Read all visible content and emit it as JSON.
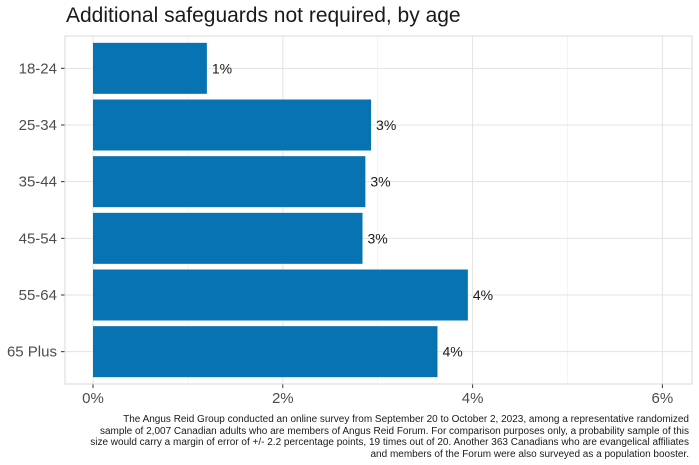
{
  "chart_data": {
    "type": "bar",
    "orientation": "horizontal",
    "title": "Additional safeguards not required, by age",
    "categories": [
      "18-24",
      "25-34",
      "35-44",
      "45-54",
      "55-64",
      "65 Plus"
    ],
    "values": [
      1.2,
      2.93,
      2.87,
      2.84,
      3.95,
      3.63
    ],
    "data_labels": [
      "1%",
      "3%",
      "3%",
      "3%",
      "4%",
      "4%"
    ],
    "x_ticks": [
      0,
      2,
      4,
      6
    ],
    "x_tick_labels": [
      "0%",
      "2%",
      "4%",
      "6%"
    ],
    "xlim": [
      0,
      6.3
    ],
    "xlabel": "",
    "ylabel": "",
    "grid": true,
    "bar_color": "#0873b3"
  },
  "footnote": "The Angus Reid Group conducted an online survey from September 20 to October 2, 2023, among a representative randomized sample of 2,007 Canadian adults who are members of Angus Reid Forum. For comparison purposes only, a probability sample of this size would carry a margin of error of +/- 2.2 percentage points, 19 times out of 20. Another 363 Canadians who are evangelical affiliates and members of the Forum were also surveyed as a population booster."
}
